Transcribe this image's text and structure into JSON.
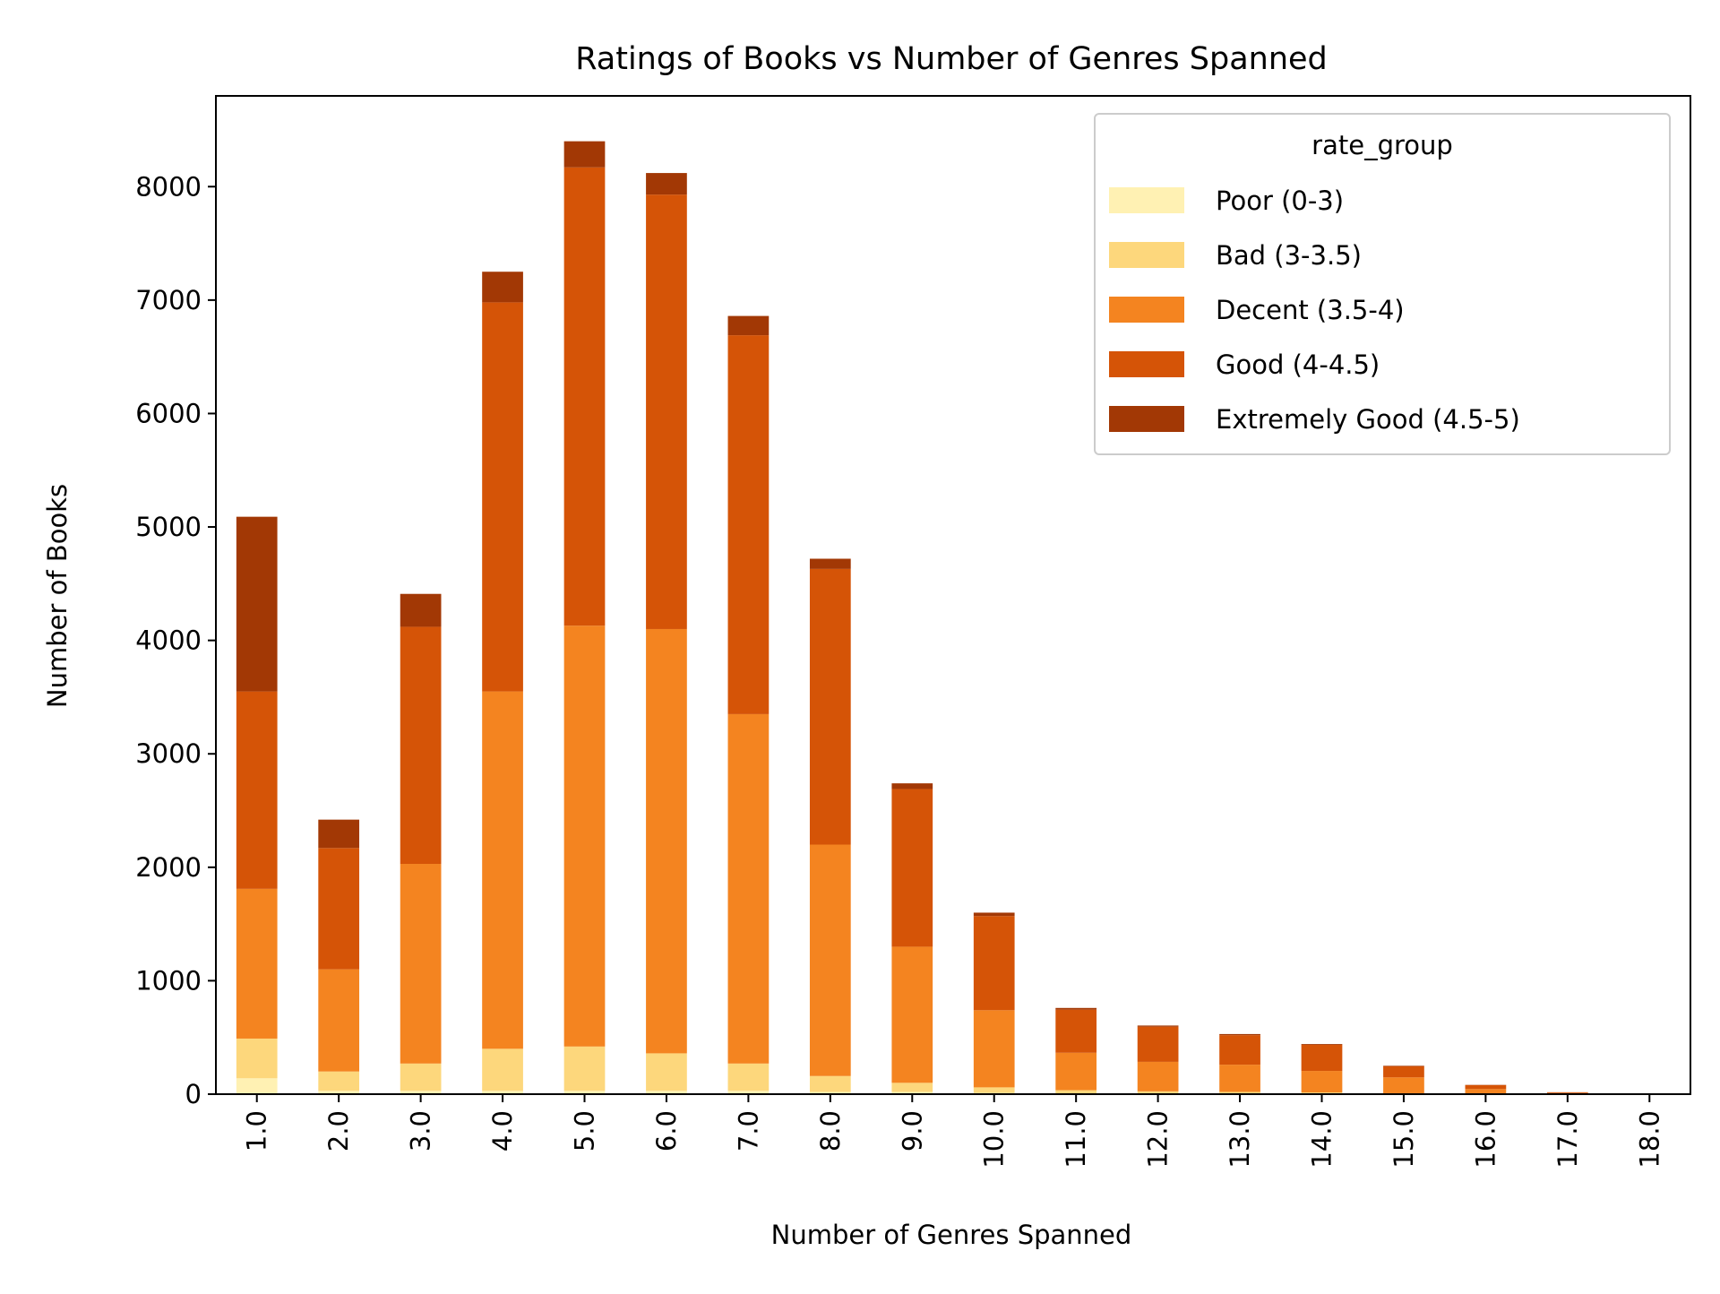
{
  "chart_data": {
    "type": "bar",
    "stacked": true,
    "title": "Ratings of Books vs Number of Genres Spanned",
    "xlabel": "Number of Genres Spanned",
    "ylabel": "Number of Books",
    "categories": [
      "1.0",
      "2.0",
      "3.0",
      "4.0",
      "5.0",
      "6.0",
      "7.0",
      "8.0",
      "9.0",
      "10.0",
      "11.0",
      "12.0",
      "13.0",
      "14.0",
      "15.0",
      "16.0",
      "17.0",
      "18.0"
    ],
    "ylim": [
      0,
      8800
    ],
    "yticks": [
      0,
      1000,
      2000,
      3000,
      4000,
      5000,
      6000,
      7000,
      8000
    ],
    "grid": false,
    "legend": {
      "title": "rate_group",
      "placement": "top-right"
    },
    "series": [
      {
        "name": "Poor (0-3)",
        "color": "#fff1b3",
        "values": [
          140,
          30,
          30,
          30,
          30,
          30,
          30,
          20,
          20,
          10,
          5,
          5,
          5,
          5,
          3,
          2,
          1,
          0
        ]
      },
      {
        "name": "Bad (3-3.5)",
        "color": "#fdd77c",
        "values": [
          350,
          170,
          240,
          370,
          390,
          330,
          240,
          140,
          80,
          50,
          30,
          20,
          15,
          10,
          5,
          3,
          1,
          0
        ]
      },
      {
        "name": "Decent (3.5-4)",
        "color": "#f48420",
        "values": [
          1320,
          900,
          1760,
          3150,
          3710,
          3740,
          3080,
          2040,
          1200,
          680,
          330,
          260,
          240,
          190,
          140,
          40,
          8,
          1
        ]
      },
      {
        "name": "Good (4-4.5)",
        "color": "#d55407",
        "values": [
          1740,
          1070,
          2090,
          3430,
          4040,
          3830,
          3340,
          2430,
          1390,
          830,
          380,
          310,
          260,
          230,
          97,
          35,
          6,
          1
        ]
      },
      {
        "name": "Extremely Good (4.5-5)",
        "color": "#a23805",
        "values": [
          1540,
          250,
          290,
          270,
          230,
          190,
          170,
          90,
          50,
          30,
          15,
          10,
          10,
          7,
          5,
          2,
          1,
          0
        ]
      }
    ]
  }
}
